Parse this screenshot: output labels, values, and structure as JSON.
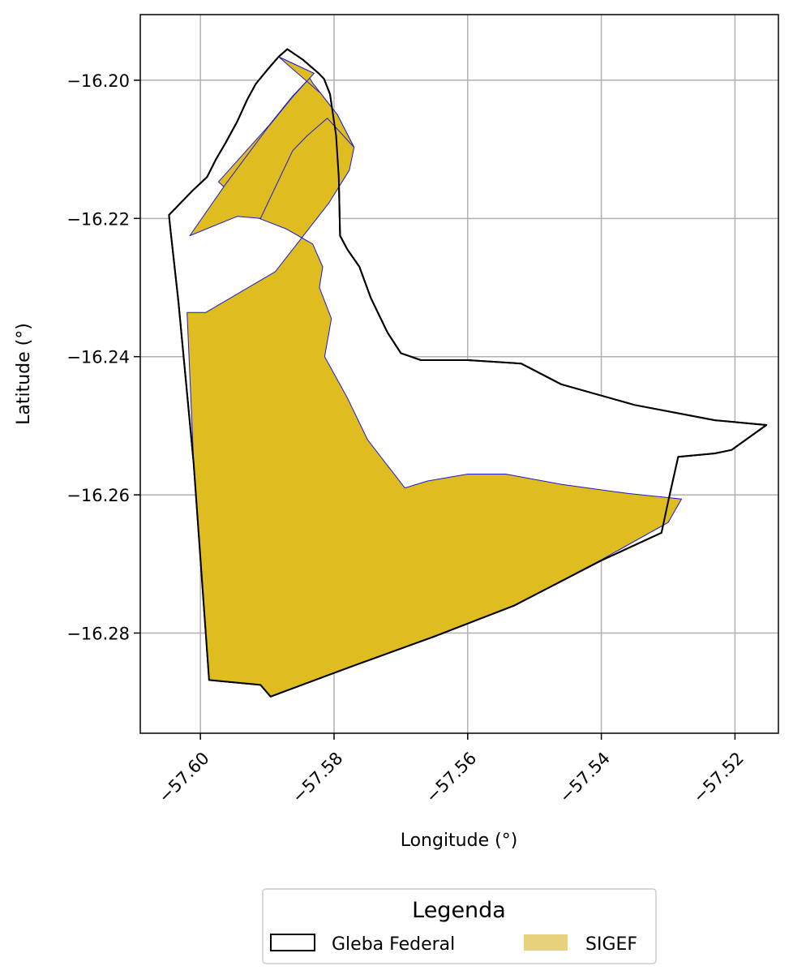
{
  "chart_data": {
    "type": "map",
    "xlabel": "Longitude (°)",
    "ylabel": "Latitude (°)",
    "xlim": [
      -57.609,
      -57.5135
    ],
    "ylim": [
      -16.2945,
      -16.1905
    ],
    "grid": true,
    "x_ticks": [
      {
        "value": -57.6,
        "label": "−57.60"
      },
      {
        "value": -57.58,
        "label": "−57.58"
      },
      {
        "value": -57.56,
        "label": "−57.56"
      },
      {
        "value": -57.54,
        "label": "−57.54"
      },
      {
        "value": -57.52,
        "label": "−57.52"
      }
    ],
    "y_ticks": [
      {
        "value": -16.2,
        "label": "−16.20"
      },
      {
        "value": -16.22,
        "label": "−16.22"
      },
      {
        "value": -16.24,
        "label": "−16.24"
      },
      {
        "value": -16.26,
        "label": "−16.26"
      },
      {
        "value": -16.28,
        "label": "−16.28"
      }
    ],
    "legend": {
      "title": "Legenda",
      "placement": "bottom-center",
      "entries": [
        {
          "label": "Gleba Federal",
          "style": "outline",
          "color": "#000000"
        },
        {
          "label": "SIGEF",
          "style": "fill",
          "color": "#e6d27a"
        }
      ]
    },
    "colors": {
      "sigef_fill": "#dfbc20",
      "sigef_edge": "#1a1ad6",
      "gleba_edge": "#000000",
      "grid": "#b0b0b0"
    },
    "layers": [
      {
        "name": "SIGEF",
        "polygons": [
          [
            [
              -57.5883,
              -16.1966
            ],
            [
              -57.5842,
              -16.1988
            ],
            [
              -57.5832,
              -16.2004
            ],
            [
              -57.582,
              -16.2019
            ],
            [
              -57.5795,
              -16.205
            ],
            [
              -57.577,
              -16.2097
            ],
            [
              -57.5777,
              -16.213
            ],
            [
              -57.5808,
              -16.2178
            ],
            [
              -57.5888,
              -16.2277
            ],
            [
              -57.5992,
              -16.2336
            ],
            [
              -57.602,
              -16.2336
            ],
            [
              -57.601,
              -16.2555
            ],
            [
              -57.5987,
              -16.2868
            ],
            [
              -57.591,
              -16.2875
            ],
            [
              -57.5895,
              -16.2892
            ],
            [
              -57.5773,
              -16.2848
            ],
            [
              -57.565,
              -16.2805
            ],
            [
              -57.553,
              -16.276
            ],
            [
              -57.5402,
              -16.2695
            ],
            [
              -57.53,
              -16.264
            ],
            [
              -57.528,
              -16.2606
            ],
            [
              -57.536,
              -16.2598
            ],
            [
              -57.5459,
              -16.2585
            ],
            [
              -57.5543,
              -16.257
            ],
            [
              -57.56,
              -16.257
            ],
            [
              -57.566,
              -16.258
            ],
            [
              -57.5694,
              -16.259
            ],
            [
              -57.575,
              -16.252
            ],
            [
              -57.578,
              -16.246
            ],
            [
              -57.5814,
              -16.24
            ],
            [
              -57.5804,
              -16.2345
            ],
            [
              -57.5822,
              -16.23
            ],
            [
              -57.5817,
              -16.227
            ],
            [
              -57.5832,
              -16.2237
            ],
            [
              -57.5872,
              -16.2215
            ],
            [
              -57.5912,
              -16.22
            ],
            [
              -57.5938,
              -16.2185
            ],
            [
              -57.5952,
              -16.2165
            ],
            [
              -57.5973,
              -16.2147
            ],
            [
              -57.5897,
              -16.2065
            ],
            [
              -57.5863,
              -16.2024
            ],
            [
              -57.583,
              -16.199
            ],
            [
              -57.5883,
              -16.1966
            ]
          ],
          [
            [
              -57.5883,
              -16.1966
            ],
            [
              -57.583,
              -16.199
            ],
            [
              -57.5862,
              -16.2024
            ],
            [
              -57.5898,
              -16.2067
            ],
            [
              -57.5962,
              -16.215
            ],
            [
              -57.6016,
              -16.2225
            ],
            [
              -57.5945,
              -16.2197
            ],
            [
              -57.591,
              -16.22
            ],
            [
              -57.5862,
              -16.2102
            ],
            [
              -57.584,
              -16.208
            ],
            [
              -57.581,
              -16.2055
            ],
            [
              -57.577,
              -16.2097
            ],
            [
              -57.5795,
              -16.205
            ],
            [
              -57.582,
              -16.2019
            ],
            [
              -57.5883,
              -16.1966
            ]
          ]
        ]
      },
      {
        "name": "Gleba Federal",
        "polygons": [
          [
            [
              -57.587,
              -16.1955
            ],
            [
              -57.5847,
              -16.197
            ],
            [
              -57.5823,
              -16.199
            ],
            [
              -57.5815,
              -16.1998
            ],
            [
              -57.5806,
              -16.202
            ],
            [
              -57.5797,
              -16.208
            ],
            [
              -57.5793,
              -16.214
            ],
            [
              -57.5791,
              -16.2225
            ],
            [
              -57.578,
              -16.2245
            ],
            [
              -57.5762,
              -16.227
            ],
            [
              -57.5745,
              -16.2315
            ],
            [
              -57.572,
              -16.2365
            ],
            [
              -57.57,
              -16.2395
            ],
            [
              -57.567,
              -16.2405
            ],
            [
              -57.56,
              -16.2405
            ],
            [
              -57.552,
              -16.241
            ],
            [
              -57.546,
              -16.244
            ],
            [
              -57.535,
              -16.247
            ],
            [
              -57.523,
              -16.2492
            ],
            [
              -57.5176,
              -16.2497
            ],
            [
              -57.5153,
              -16.2499
            ],
            [
              -57.5205,
              -16.2535
            ],
            [
              -57.523,
              -16.254
            ],
            [
              -57.5285,
              -16.2545
            ],
            [
              -57.53,
              -16.261
            ],
            [
              -57.531,
              -16.2655
            ],
            [
              -57.54,
              -16.2695
            ],
            [
              -57.553,
              -16.276
            ],
            [
              -57.565,
              -16.2805
            ],
            [
              -57.5773,
              -16.2848
            ],
            [
              -57.5895,
              -16.2892
            ],
            [
              -57.591,
              -16.2875
            ],
            [
              -57.5987,
              -16.2868
            ],
            [
              -57.601,
              -16.2555
            ],
            [
              -57.6033,
              -16.232
            ],
            [
              -57.6045,
              -16.2215
            ],
            [
              -57.6047,
              -16.2195
            ],
            [
              -57.603,
              -16.2178
            ],
            [
              -57.6012,
              -16.216
            ],
            [
              -57.599,
              -16.214
            ],
            [
              -57.5977,
              -16.2115
            ],
            [
              -57.5962,
              -16.209
            ],
            [
              -57.5945,
              -16.206
            ],
            [
              -57.593,
              -16.2028
            ],
            [
              -57.5917,
              -16.2005
            ],
            [
              -57.59,
              -16.1985
            ],
            [
              -57.5883,
              -16.1966
            ],
            [
              -57.587,
              -16.1955
            ]
          ]
        ]
      }
    ]
  }
}
